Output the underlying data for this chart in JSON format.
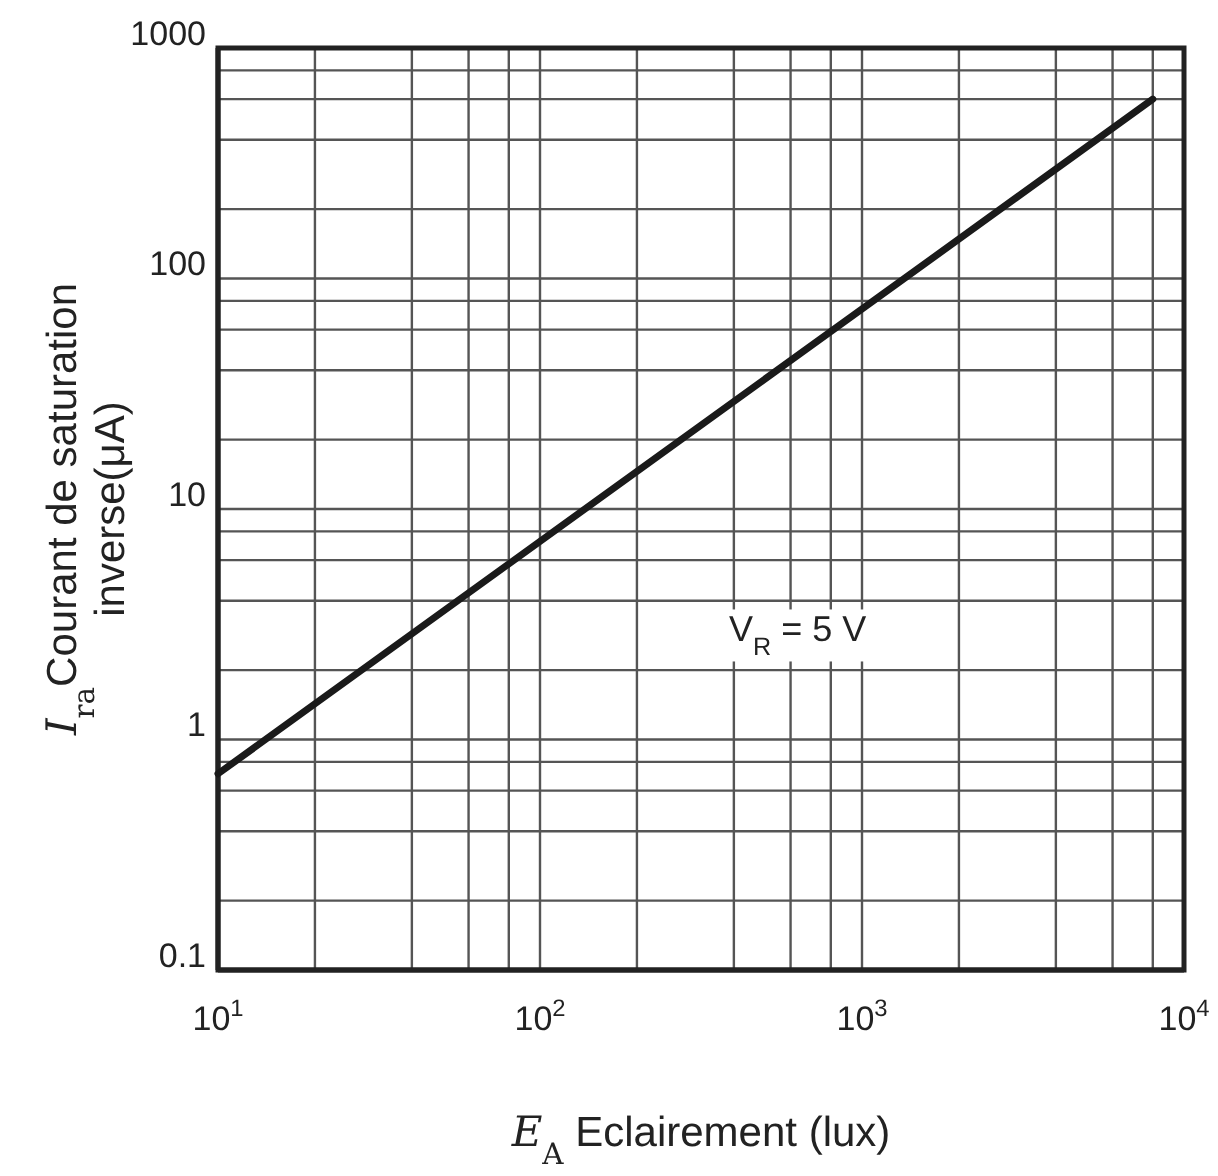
{
  "chart_data": {
    "type": "line",
    "xlabel": "E$_{A}$ Eclairement (lux)",
    "ylabel": "I$_{ra}$Courant de saturation inverse(μA)",
    "annotations": [
      "V$_{R}$ = 5 V"
    ],
    "x": [
      10,
      8000
    ],
    "series": [
      {
        "color": "#1a1a1a",
        "values": [
          0.71,
          600
        ]
      }
    ],
    "log": "xy",
    "xlim": [
      10,
      10000
    ],
    "ylim": [
      0.1,
      1000
    ],
    "xticks": [
      {
        "value": 10,
        "label": "10$^{1}$"
      },
      {
        "value": 100,
        "label": "10$^{2}$"
      },
      {
        "value": 1000,
        "label": "10$^{3}$"
      },
      {
        "value": 10000,
        "label": "10$^{4}$"
      }
    ],
    "yticks": [
      0.1,
      1,
      10,
      100,
      1000
    ],
    "grid": true,
    "marker": "none",
    "line_style": "solid"
  }
}
